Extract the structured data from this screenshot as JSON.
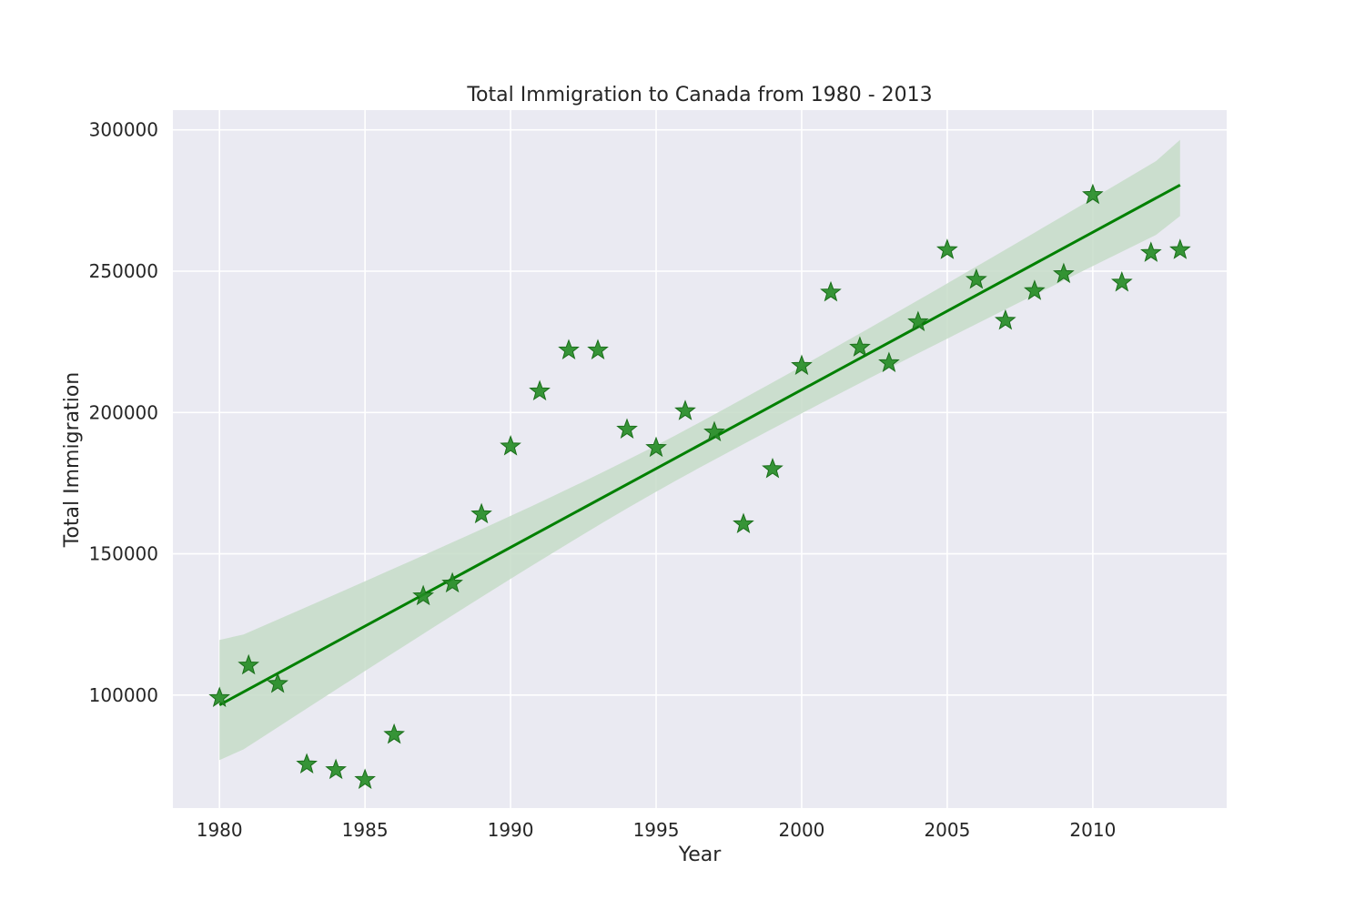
{
  "chart_data": {
    "type": "scatter",
    "title": "Total Immigration to Canada from 1980 - 2013",
    "xlabel": "Year",
    "ylabel": "Total Immigration",
    "xlim": [
      1978.4,
      2014.6
    ],
    "ylim": [
      60000,
      307000
    ],
    "x_ticks": [
      1980,
      1985,
      1990,
      1995,
      2000,
      2005,
      2010
    ],
    "y_ticks": [
      100000,
      150000,
      200000,
      250000,
      300000
    ],
    "grid": true,
    "marker": "star",
    "colors": {
      "background": "#eaeaf2",
      "grid": "#ffffff",
      "points": "#228b22",
      "line": "#008000",
      "band": "#c5dcc8"
    },
    "points": [
      {
        "x": 1980,
        "y": 99000
      },
      {
        "x": 1981,
        "y": 110500
      },
      {
        "x": 1982,
        "y": 104000
      },
      {
        "x": 1983,
        "y": 75500
      },
      {
        "x": 1984,
        "y": 73500
      },
      {
        "x": 1985,
        "y": 70000
      },
      {
        "x": 1986,
        "y": 86000
      },
      {
        "x": 1987,
        "y": 135000
      },
      {
        "x": 1988,
        "y": 139500
      },
      {
        "x": 1989,
        "y": 164000
      },
      {
        "x": 1990,
        "y": 188000
      },
      {
        "x": 1991,
        "y": 207500
      },
      {
        "x": 1992,
        "y": 222000
      },
      {
        "x": 1993,
        "y": 222000
      },
      {
        "x": 1994,
        "y": 194000
      },
      {
        "x": 1995,
        "y": 187500
      },
      {
        "x": 1996,
        "y": 200500
      },
      {
        "x": 1997,
        "y": 193000
      },
      {
        "x": 1998,
        "y": 160500
      },
      {
        "x": 1999,
        "y": 180000
      },
      {
        "x": 2000,
        "y": 216500
      },
      {
        "x": 2001,
        "y": 242500
      },
      {
        "x": 2002,
        "y": 223000
      },
      {
        "x": 2003,
        "y": 217500
      },
      {
        "x": 2004,
        "y": 232000
      },
      {
        "x": 2005,
        "y": 257500
      },
      {
        "x": 2006,
        "y": 247000
      },
      {
        "x": 2007,
        "y": 232500
      },
      {
        "x": 2008,
        "y": 243000
      },
      {
        "x": 2009,
        "y": 249000
      },
      {
        "x": 2010,
        "y": 277000
      },
      {
        "x": 2011,
        "y": 246000
      },
      {
        "x": 2012,
        "y": 256500
      },
      {
        "x": 2013,
        "y": 257500
      }
    ],
    "regression": {
      "x_range": [
        1980,
        2013
      ],
      "y_start": 96500,
      "y_end": 280500,
      "band_upper_start": 119500,
      "band_upper_end": 296500,
      "band_lower_start": 77000,
      "band_lower_end": 269500
    }
  }
}
